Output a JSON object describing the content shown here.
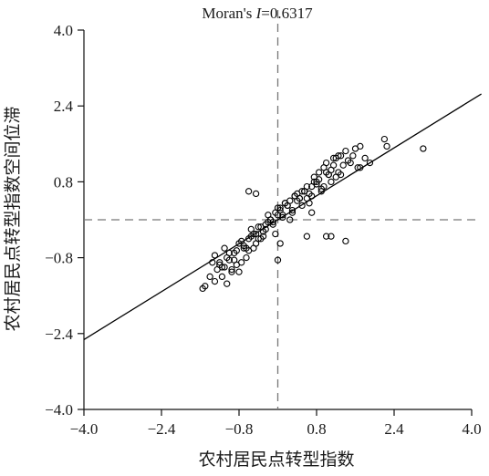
{
  "chart_data": {
    "type": "scatter",
    "title_prefix": "Moran's ",
    "title_italic": "I",
    "title_suffix": "=0.6317",
    "xlabel": "农村居民点转型指数",
    "ylabel": "农村居民点转型指数空间位滞",
    "xlim": [
      -4.0,
      4.0
    ],
    "ylim": [
      -4.0,
      4.0
    ],
    "xticks": [
      -4.0,
      -2.4,
      -0.8,
      0.8,
      2.4,
      4.0
    ],
    "yticks": [
      -4.0,
      -2.4,
      -0.8,
      0.8,
      2.4,
      4.0
    ],
    "xtick_labels": [
      "−4.0",
      "−2.4",
      "−0.8",
      "0.8",
      "2.4",
      "4.0"
    ],
    "ytick_labels": [
      "−4.0",
      "−2.4",
      "−0.8",
      "0.8",
      "2.4",
      "4.0"
    ],
    "grid": false,
    "reference_lines": {
      "x": 0,
      "y": 0,
      "style": "dashed",
      "color": "#777777"
    },
    "regression_line": {
      "slope": 0.6317,
      "intercept": 0,
      "color": "#000000"
    },
    "marker_color": "#000000",
    "x": [
      -1.55,
      -1.5,
      -1.4,
      -1.35,
      -1.3,
      -1.25,
      -1.2,
      -1.15,
      -1.1,
      -1.05,
      -1.0,
      -0.95,
      -0.9,
      -0.85,
      -0.8,
      -0.75,
      -0.7,
      -0.65,
      -0.6,
      -0.55,
      -0.5,
      -0.45,
      -0.4,
      -0.35,
      -0.3,
      -0.25,
      -0.2,
      -0.15,
      -0.1,
      -0.05,
      0.0,
      0.05,
      0.1,
      0.15,
      0.2,
      0.25,
      0.3,
      0.35,
      0.4,
      0.45,
      0.5,
      0.55,
      0.6,
      0.65,
      0.7,
      0.75,
      0.8,
      0.85,
      0.9,
      0.95,
      1.0,
      1.05,
      1.1,
      1.15,
      1.2,
      1.25,
      1.3,
      1.4,
      1.5,
      1.6,
      1.7,
      1.8,
      1.9,
      2.2,
      2.25,
      3.0,
      -1.3,
      -1.2,
      -1.1,
      -1.0,
      -0.9,
      -0.8,
      -0.7,
      -0.6,
      -0.5,
      -0.4,
      -0.3,
      -0.2,
      -0.1,
      0.0,
      0.1,
      0.2,
      0.3,
      0.4,
      0.5,
      0.6,
      0.7,
      0.8,
      0.9,
      1.0,
      1.1,
      1.2,
      1.3,
      -1.15,
      -1.05,
      -0.95,
      -0.85,
      -0.75,
      -0.65,
      -0.55,
      -0.45,
      -0.35,
      -0.25,
      -0.15,
      -0.05,
      0.05,
      0.15,
      0.25,
      0.35,
      0.45,
      0.55,
      0.65,
      0.75,
      0.85,
      0.95,
      1.05,
      1.15,
      1.25,
      1.35,
      1.45,
      1.55,
      1.65,
      -0.6,
      -0.45,
      0.0,
      0.05,
      0.6,
      0.7,
      1.0,
      1.1,
      1.4,
      1.7
    ],
    "y": [
      -1.45,
      -1.4,
      -1.2,
      -0.9,
      -1.3,
      -1.05,
      -0.95,
      -1.2,
      -1.0,
      -1.35,
      -0.85,
      -1.05,
      -0.7,
      -0.95,
      -1.1,
      -0.9,
      -0.6,
      -0.8,
      -0.4,
      -0.35,
      -0.6,
      -0.3,
      -0.4,
      -0.15,
      -0.35,
      -0.2,
      -0.05,
      0.0,
      -0.1,
      0.15,
      0.1,
      0.2,
      0.05,
      0.35,
      0.3,
      0.4,
      0.15,
      0.5,
      0.55,
      0.45,
      0.3,
      0.6,
      0.7,
      0.55,
      0.5,
      0.9,
      0.75,
      1.0,
      0.6,
      1.1,
      1.2,
      0.95,
      0.8,
      1.15,
      1.3,
      1.0,
      1.35,
      1.45,
      1.2,
      1.5,
      1.55,
      1.3,
      1.2,
      1.7,
      1.55,
      1.5,
      -0.75,
      -0.9,
      -0.6,
      -0.7,
      -0.85,
      -0.5,
      -0.55,
      -0.65,
      -0.3,
      -0.15,
      -0.25,
      0.1,
      -0.05,
      0.25,
      0.1,
      0.3,
      0.2,
      0.4,
      0.6,
      0.45,
      0.7,
      0.8,
      0.65,
      1.0,
      1.05,
      0.9,
      0.95,
      -1.0,
      -0.8,
      -1.1,
      -0.65,
      -0.45,
      -0.6,
      -0.2,
      -0.5,
      -0.4,
      -0.1,
      0.0,
      -0.3,
      0.25,
      0.35,
      0.0,
      0.5,
      0.45,
      0.6,
      0.35,
      0.8,
      0.85,
      0.7,
      0.95,
      1.3,
      1.35,
      1.15,
      1.25,
      1.35,
      1.1,
      0.6,
      0.55,
      -0.85,
      -0.5,
      -0.35,
      0.15,
      -0.35,
      -0.35,
      -0.45,
      1.1
    ]
  }
}
